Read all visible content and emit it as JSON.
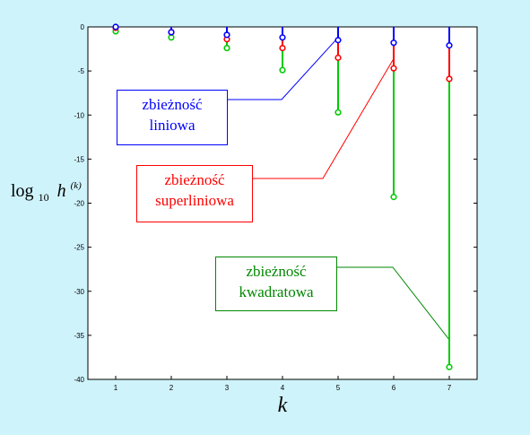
{
  "chart_data": {
    "type": "scatter",
    "x": [
      1,
      2,
      3,
      4,
      5,
      6,
      7
    ],
    "xticks": [
      1,
      2,
      3,
      4,
      5,
      6,
      7
    ],
    "yticks": [
      0,
      -5,
      -10,
      -15,
      -20,
      -25,
      -30,
      -35,
      -40
    ],
    "xlim": [
      0.5,
      7.5
    ],
    "ylim": [
      -40,
      0
    ],
    "xlabel": "k",
    "ylabel": {
      "base": "log",
      "sub": "10",
      "var": "h",
      "sup": "(k)"
    },
    "grid": false,
    "series": [
      {
        "name": "zbieżność liniowa",
        "color": "#0000ff",
        "values": [
          0,
          -0.6,
          -0.9,
          -1.2,
          -1.5,
          -1.8,
          -2.1
        ]
      },
      {
        "name": "zbieżność superliniowa",
        "color": "#ff0000",
        "values": [
          -0.1,
          -0.6,
          -1.4,
          -2.4,
          -3.5,
          -4.7,
          -5.9
        ]
      },
      {
        "name": "zbieżność kwadratowa",
        "color": "#00cc00",
        "values": [
          -0.5,
          -1.2,
          -2.4,
          -4.9,
          -9.7,
          -19.3,
          -38.6
        ]
      }
    ],
    "annotations": [
      {
        "line1": "zbieżność",
        "line2": "liniowa",
        "color": "#0000ff",
        "target": [
          5,
          -1.2
        ]
      },
      {
        "line1": "zbieżność",
        "line2": "superliniowa",
        "color": "#ff0000",
        "target": [
          6,
          -3.6
        ]
      },
      {
        "line1": "zbieżność",
        "line2": "kwadratowa",
        "color": "#008800",
        "target": [
          7,
          -35.5
        ]
      }
    ]
  }
}
